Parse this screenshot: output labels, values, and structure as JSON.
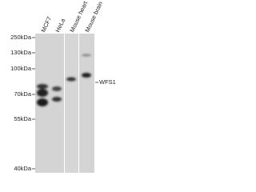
{
  "lanes": [
    "MCF7",
    "HeLa",
    "Mouse heart",
    "Mouse brain"
  ],
  "markers": [
    "250kDa",
    "130kDa",
    "100kDa",
    "70kDa",
    "55kDa",
    "40kDa"
  ],
  "target": "WFS1"
}
